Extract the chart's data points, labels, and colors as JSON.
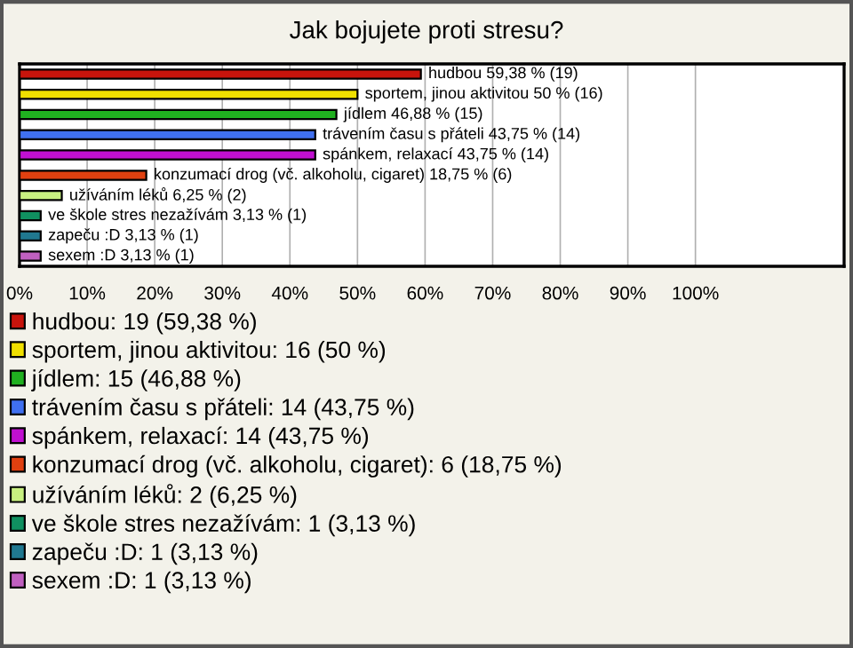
{
  "chart_data": {
    "type": "bar",
    "orientation": "horizontal",
    "title": "Jak bojujete proti stresu?",
    "categories": [
      null,
      null,
      null,
      null,
      null,
      null,
      null,
      null,
      null,
      null
    ],
    "series": [
      {
        "name": "hudbou: 19 (59,38 %)",
        "color": "#c8140c",
        "values": [
          59.38,
          null,
          null,
          null,
          null,
          null,
          null,
          null,
          null,
          null
        ],
        "value_labels": [
          "hudbou 59,38 % (19)",
          null,
          null,
          null,
          null,
          null,
          null,
          null,
          null,
          null
        ]
      },
      {
        "name": "sportem, jinou aktivitou: 16 (50 %)",
        "color": "#f0e000",
        "values": [
          null,
          50,
          null,
          null,
          null,
          null,
          null,
          null,
          null,
          null
        ],
        "value_labels": [
          null,
          "sportem, jinou aktivitou 50 % (16)",
          null,
          null,
          null,
          null,
          null,
          null,
          null,
          null
        ]
      },
      {
        "name": "jídlem: 15 (46,88 %)",
        "color": "#20b020",
        "values": [
          null,
          null,
          46.88,
          null,
          null,
          null,
          null,
          null,
          null,
          null
        ],
        "value_labels": [
          null,
          null,
          "jídlem 46,88 % (15)",
          null,
          null,
          null,
          null,
          null,
          null,
          null
        ]
      },
      {
        "name": "trávením času s přáteli: 14 (43,75 %)",
        "color": "#4070f0",
        "values": [
          null,
          null,
          null,
          43.75,
          null,
          null,
          null,
          null,
          null,
          null
        ],
        "value_labels": [
          null,
          null,
          null,
          "trávením času s přáteli 43,75 % (14)",
          null,
          null,
          null,
          null,
          null,
          null
        ]
      },
      {
        "name": "spánkem, relaxací: 14 (43,75 %)",
        "color": "#c010d0",
        "values": [
          null,
          null,
          null,
          null,
          43.75,
          null,
          null,
          null,
          null,
          null
        ],
        "value_labels": [
          null,
          null,
          null,
          null,
          "spánkem, relaxací 43,75 % (14)",
          null,
          null,
          null,
          null,
          null
        ]
      },
      {
        "name": "konzumací drog (vč. alkoholu, cigaret): 6 (18,75 %)",
        "color": "#e04010",
        "values": [
          null,
          null,
          null,
          null,
          null,
          18.75,
          null,
          null,
          null,
          null
        ],
        "value_labels": [
          null,
          null,
          null,
          null,
          null,
          "konzumací drog (vč. alkoholu, cigaret) 18,75 % (6)",
          null,
          null,
          null,
          null
        ]
      },
      {
        "name": "užíváním léků: 2 (6,25 %)",
        "color": "#c8f080",
        "values": [
          null,
          null,
          null,
          null,
          null,
          null,
          6.25,
          null,
          null,
          null
        ],
        "value_labels": [
          null,
          null,
          null,
          null,
          null,
          null,
          "užíváním léků 6,25 % (2)",
          null,
          null,
          null
        ]
      },
      {
        "name": "ve škole stres nezažívám: 1 (3,13 %)",
        "color": "#109060",
        "values": [
          null,
          null,
          null,
          null,
          null,
          null,
          null,
          3.13,
          null,
          null
        ],
        "value_labels": [
          null,
          null,
          null,
          null,
          null,
          null,
          null,
          "ve škole stres nezažívám 3,13 % (1)",
          null,
          null
        ]
      },
      {
        "name": "zapeču :D: 1 (3,13 %)",
        "color": "#207890",
        "values": [
          null,
          null,
          null,
          null,
          null,
          null,
          null,
          null,
          3.13,
          null
        ],
        "value_labels": [
          null,
          null,
          null,
          null,
          null,
          null,
          null,
          null,
          "zapeču :D 3,13 % (1)",
          null
        ]
      },
      {
        "name": "sexem :D: 1 (3,13 %)",
        "color": "#c060c0",
        "values": [
          null,
          null,
          null,
          null,
          null,
          null,
          null,
          null,
          null,
          3.13
        ],
        "value_labels": [
          null,
          null,
          null,
          null,
          null,
          null,
          null,
          null,
          null,
          "sexem :D 3,13 % (1)"
        ]
      }
    ],
    "xlim": [
      0,
      122
    ],
    "xticks": [
      {
        "value": 0,
        "label": "0%"
      },
      {
        "value": 10,
        "label": "10%"
      },
      {
        "value": 20,
        "label": "20%"
      },
      {
        "value": 30,
        "label": "30%"
      },
      {
        "value": 40,
        "label": "40%"
      },
      {
        "value": 50,
        "label": "50%"
      },
      {
        "value": 60,
        "label": "60%"
      },
      {
        "value": 70,
        "label": "70%"
      },
      {
        "value": 80,
        "label": "80%"
      },
      {
        "value": 90,
        "label": "90%"
      },
      {
        "value": 100,
        "label": "100%"
      }
    ],
    "grid": "x",
    "legend": "bottom",
    "tick_labels": "x"
  }
}
